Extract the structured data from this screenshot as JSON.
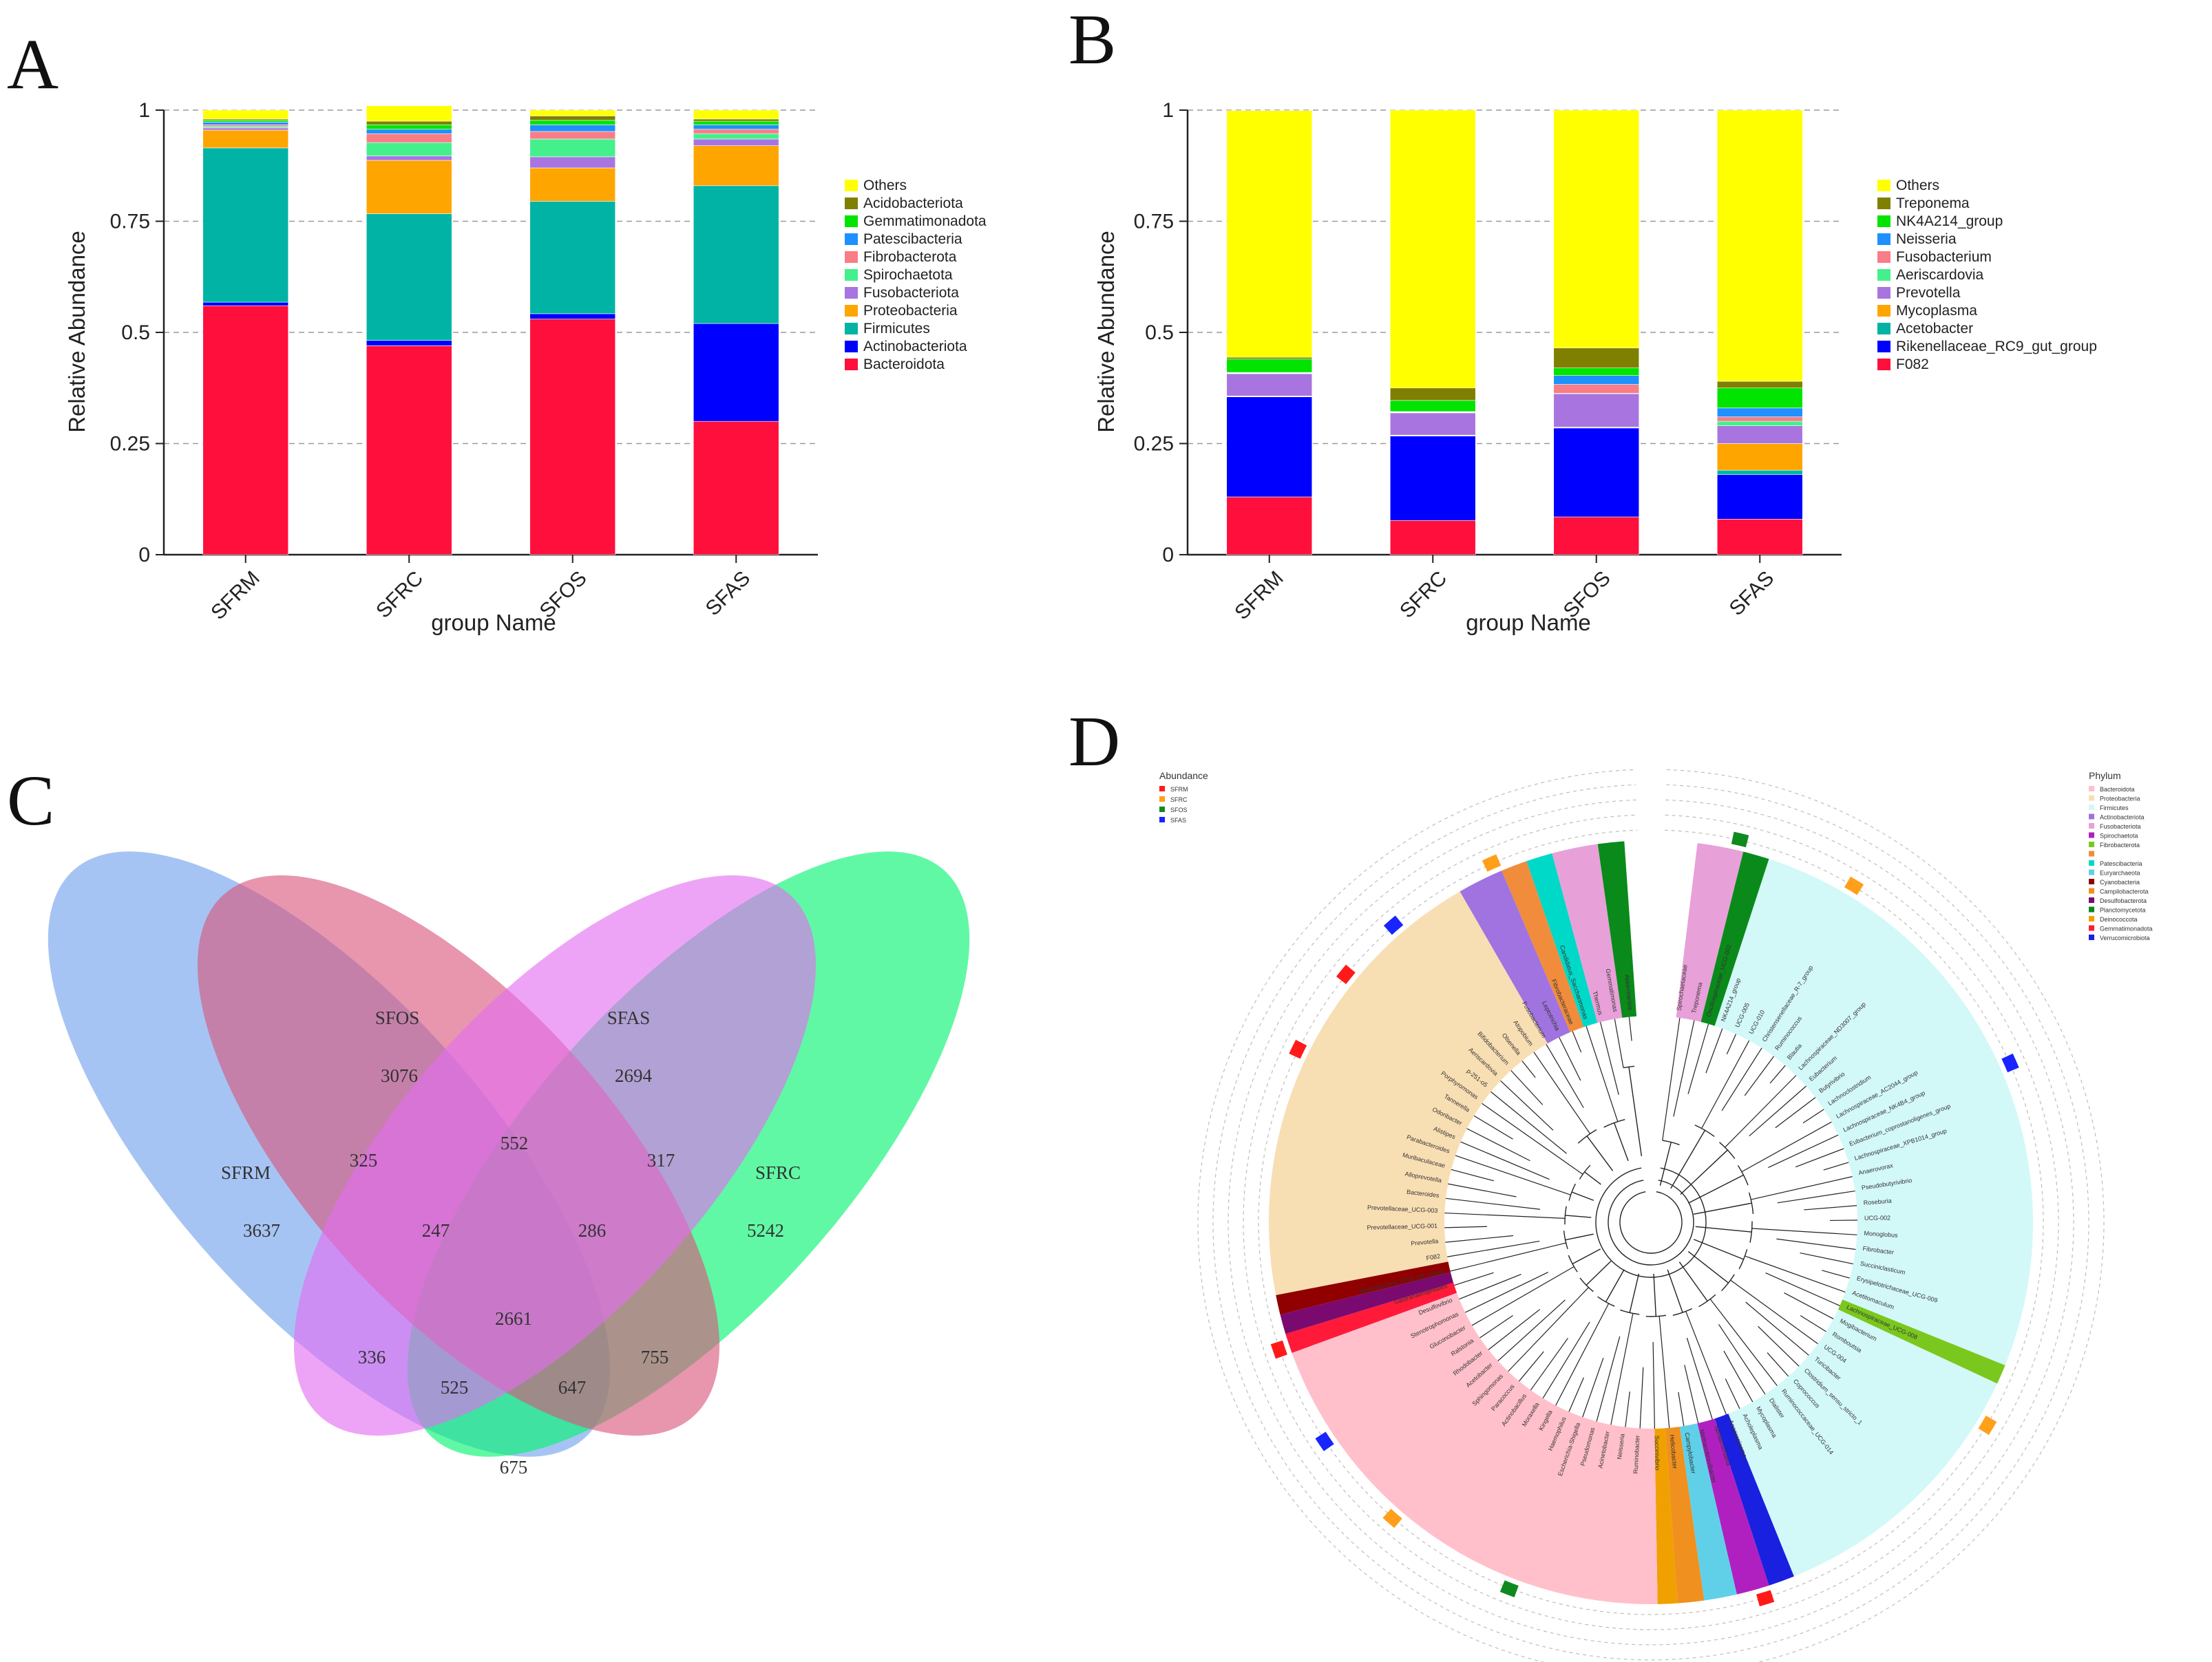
{
  "panels": {
    "a": "A",
    "b": "B",
    "c": "C",
    "d": "D"
  },
  "chart_data": [
    {
      "type": "bar",
      "stacked": true,
      "categories": [
        "SFRM",
        "SFRC",
        "SFOS",
        "SFAS"
      ],
      "xlabel": "group Name",
      "ylabel": "Relative Abundance",
      "ylim": [
        0,
        1
      ],
      "yticks": [
        "0",
        "0.25",
        "0.5",
        "0.75",
        "1"
      ],
      "grid": "dashed horizontal",
      "legend_position": "right",
      "series": [
        {
          "name": "Bacteroidota",
          "color": "#ff0f3c",
          "values": [
            0.56,
            0.47,
            0.53,
            0.3
          ]
        },
        {
          "name": "Actinobacteriota",
          "color": "#0000ff",
          "values": [
            0.008,
            0.012,
            0.012,
            0.22
          ]
        },
        {
          "name": "Firmicutes",
          "color": "#00b3a4",
          "values": [
            0.347,
            0.285,
            0.253,
            0.31
          ]
        },
        {
          "name": "Proteobacteria",
          "color": "#ffa500",
          "values": [
            0.04,
            0.12,
            0.075,
            0.09
          ]
        },
        {
          "name": "Fusobacteriota",
          "color": "#a875e0",
          "values": [
            0.005,
            0.01,
            0.025,
            0.015
          ]
        },
        {
          "name": "Spirochaetota",
          "color": "#44f08c",
          "values": [
            0.003,
            0.03,
            0.04,
            0.012
          ]
        },
        {
          "name": "Fibrobacterota",
          "color": "#f97d86",
          "values": [
            0.004,
            0.02,
            0.017,
            0.01
          ]
        },
        {
          "name": "Patescibacteria",
          "color": "#1e90ff",
          "values": [
            0.006,
            0.01,
            0.015,
            0.01
          ]
        },
        {
          "name": "Gemmatimonadota",
          "color": "#00e400",
          "values": [
            0.004,
            0.01,
            0.01,
            0.008
          ]
        },
        {
          "name": "Acidobacteriota",
          "color": "#7f7f00",
          "values": [
            0.003,
            0.008,
            0.01,
            0.005
          ]
        },
        {
          "name": "Others",
          "color": "#ffff00",
          "values": [
            0.02,
            0.035,
            0.013,
            0.02
          ]
        }
      ]
    },
    {
      "type": "bar",
      "stacked": true,
      "categories": [
        "SFRM",
        "SFRC",
        "SFOS",
        "SFAS"
      ],
      "xlabel": "group Name",
      "ylabel": "Relative Abundance",
      "ylim": [
        0,
        1
      ],
      "yticks": [
        "0",
        "0.25",
        "0.5",
        "0.75",
        "1"
      ],
      "grid": "dashed horizontal",
      "legend_position": "right",
      "series": [
        {
          "name": "F082",
          "color": "#ff0f3c",
          "values": [
            0.13,
            0.077,
            0.085,
            0.08
          ]
        },
        {
          "name": "Rikenellaceae_RC9_gut_group",
          "color": "#0000ff",
          "values": [
            0.225,
            0.19,
            0.2,
            0.1
          ]
        },
        {
          "name": "Acetobacter",
          "color": "#00b3a4",
          "values": [
            0.001,
            0.001,
            0.001,
            0.01
          ]
        },
        {
          "name": "Mycoplasma",
          "color": "#ffa500",
          "values": [
            0.001,
            0.001,
            0.001,
            0.06
          ]
        },
        {
          "name": "Prevotella",
          "color": "#a875e0",
          "values": [
            0.05,
            0.05,
            0.075,
            0.04
          ]
        },
        {
          "name": "Aeriscardovia",
          "color": "#44f08c",
          "values": [
            0.001,
            0.001,
            0.001,
            0.01
          ]
        },
        {
          "name": "Fusobacterium",
          "color": "#f97d86",
          "values": [
            0.001,
            0.001,
            0.02,
            0.01
          ]
        },
        {
          "name": "Neisseria",
          "color": "#1e90ff",
          "values": [
            0.001,
            0.001,
            0.02,
            0.02
          ]
        },
        {
          "name": "NK4A214_group",
          "color": "#00e400",
          "values": [
            0.03,
            0.025,
            0.017,
            0.045
          ]
        },
        {
          "name": "Treponema",
          "color": "#7f7f00",
          "values": [
            0.004,
            0.028,
            0.045,
            0.015
          ]
        },
        {
          "name": "Others",
          "color": "#ffff00",
          "values": [
            0.555,
            0.625,
            0.535,
            0.61
          ]
        }
      ]
    }
  ],
  "venn": {
    "sets": [
      {
        "name": "SFRM",
        "color": "#6fa0ec"
      },
      {
        "name": "SFOS",
        "color": "#d9557a"
      },
      {
        "name": "SFAS",
        "color": "#e46cf0"
      },
      {
        "name": "SFRC",
        "color": "#00f36d"
      }
    ],
    "counts": {
      "SFRM_only": "3637",
      "SFOS_only": "3076",
      "SFAS_only": "2694",
      "SFRC_only": "5242",
      "SFRM_SFOS": "325",
      "SFOS_SFAS": "552",
      "SFAS_SFRC": "317",
      "SFRM_SFOS_SFAS": "247",
      "SFOS_SFAS_SFRC": "286",
      "all": "2661",
      "SFRM_SFAS": "336",
      "SFRM_SFAS_SFRC": "525",
      "SFRM_SFOS_SFRC": "647",
      "SFOS_SFRC": "755",
      "SFRM_SFRC": "675"
    }
  },
  "tree": {
    "abundance_title": "Abundance",
    "abundance_legend": [
      {
        "name": "SFRM",
        "color": "#ff1a1a"
      },
      {
        "name": "SFRC",
        "color": "#ff9f1a"
      },
      {
        "name": "SFOS",
        "color": "#0f8a1f"
      },
      {
        "name": "SFAS",
        "color": "#1a24ff"
      }
    ],
    "phylum_title": "Phylum",
    "phylum_legend": [
      {
        "name": "Bacteroidota",
        "color": "#ffc0cb"
      },
      {
        "name": "Proteobacteria",
        "color": "#f8deb3"
      },
      {
        "name": "Firmicutes",
        "color": "#d3f8f8"
      },
      {
        "name": "Actinobacteriota",
        "color": "#a073e0"
      },
      {
        "name": "Fusobacteriota",
        "color": "#e8a0d8"
      },
      {
        "name": "Spirochaetota",
        "color": "#b020c0"
      },
      {
        "name": "Fibrobacterota",
        "color": "#7ac81e"
      },
      {
        "name": "",
        "color": "#f08c3c"
      },
      {
        "name": "Patescibacteria",
        "color": "#00d8c8"
      },
      {
        "name": "Euryarchaeota",
        "color": "#60d0e8"
      },
      {
        "name": "Cyanobacteria",
        "color": "#900000"
      },
      {
        "name": "Campilobacterota",
        "color": "#f0901e"
      },
      {
        "name": "Desulfobacterota",
        "color": "#7a0a70"
      },
      {
        "name": "Planctomycetota",
        "color": "#0a8a1a"
      },
      {
        "name": "Deinococcota",
        "color": "#f0a000"
      },
      {
        "name": "Gemmatimonadota",
        "color": "#ff1a3a"
      },
      {
        "name": "Verrucomicrobiota",
        "color": "#1a20e0"
      }
    ],
    "labels": [
      "Spirochaetaceae",
      "Treponema",
      "Oscillospiraceae_UCG-002",
      "NK4A214_group",
      "UCG-005",
      "UCG-010",
      "Christensenellaceae_R-7_group",
      "Ruminococcus",
      "Blautia",
      "Lachnospiraceae_ND3007_group",
      "Eubacterium",
      "Butyrivibrio",
      "Lachnoclostridium",
      "Lachnospiraceae_AC2044_group",
      "Lachnospiraceae_NK4B4_group",
      "Eubacterium_coprostanoligenes_group",
      "Lachnospiraceae_XPB1014_group",
      "Anaerovorax",
      "Pseudobutyrivibrio",
      "Roseburia",
      "UCG-002",
      "Monoglobus",
      "Fibrobacter",
      "Succiniclasticum",
      "Erysipelotrichaceae_UCG-009",
      "Acetitomaculum",
      "Lachnospiraceae_UCG-008",
      "Mogibacterium",
      "Romboutsia",
      "UCG-004",
      "Turicibacter",
      "Clostridium_sensu_stricto_1",
      "Coprococcus",
      "Ruminococcaceae_UCG-014",
      "Dialister",
      "Mycoplasma",
      "Acholeplasma",
      "Anaeroplasma",
      "Sphaerochaeta",
      "Methanobrevibacter",
      "Campylobacter",
      "Helicobacter",
      "Succinivibrio",
      "Ruminobacter",
      "Neisseria",
      "Acinetobacter",
      "Pseudomonas",
      "Escherichia-Shigella",
      "Haemophilus",
      "Kingella",
      "Moraxella",
      "Actinobacillus",
      "Paracoccus",
      "Sphingomonas",
      "Acetobacter",
      "Rhodobacter",
      "Ralstonia",
      "Gluconobacter",
      "Stenotrophomonas",
      "Desulfovibrio",
      "Gastranaerophilales",
      "Rikenellaceae_RC9_gut_group",
      "F082",
      "Prevotella",
      "Prevotellaceae_UCG-001",
      "Prevotellaceae_UCG-003",
      "Bacteroides",
      "Alloprevotella",
      "Muribaculaceae",
      "Parabacteroides",
      "Alistipes",
      "Odoribacter",
      "Tannerella",
      "Porphyromonas",
      "p-251-o5",
      "Aeriscardovia",
      "Bifidobacterium",
      "Olsenella",
      "Atopobium",
      "Fusobacterium",
      "Leptotrichia",
      "Fibrobacteraceae",
      "Candidatus_Saccharimonas",
      "Thermus",
      "Gemmatimonas",
      "Akkermansia"
    ]
  }
}
